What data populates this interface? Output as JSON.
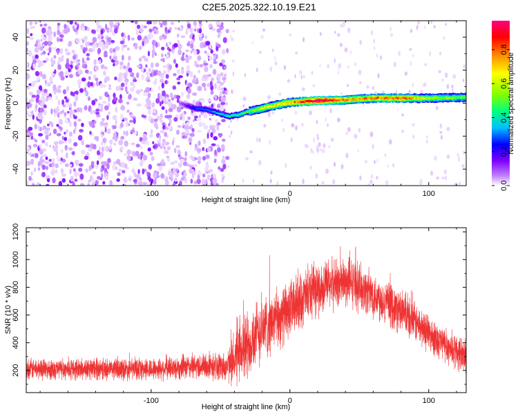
{
  "page": {
    "title": "C2E5.2025.322.10.19.E21"
  },
  "chart_data": [
    {
      "type": "heatmap",
      "name": "spectrogram",
      "xlabel": "Height of straight line (km)",
      "ylabel": "Frequency (Hz)",
      "xlim": [
        -190,
        127
      ],
      "ylim": [
        -50,
        50
      ],
      "xticks": [
        -100,
        0,
        100
      ],
      "xtick_labels": [
        "-100",
        "0",
        "100"
      ],
      "yticks": [
        -40,
        -20,
        0,
        20,
        40
      ],
      "ytick_labels": [
        "-40",
        "-20",
        "0",
        "20",
        "40"
      ],
      "colorbar": {
        "label": "Normalized spectral amplitude",
        "range": [
          0,
          0.97
        ],
        "ticks": [
          0,
          0.2,
          0.4,
          0.6,
          0.8
        ],
        "tick_labels": [
          "0.0",
          "0.2",
          "0.4",
          "0.6",
          "0.8"
        ],
        "colormap": [
          "#ffffff",
          "#c080ff",
          "#7f00ff",
          "#0000ff",
          "#00c0ff",
          "#00ff80",
          "#80ff00",
          "#ffff00",
          "#ff8000",
          "#ff0000",
          "#ff0080"
        ]
      },
      "noise_region": {
        "x": [
          -190,
          -45
        ],
        "amplitude": 0.15
      },
      "ridge": {
        "x": [
          -80,
          -70,
          -60,
          -45,
          -38,
          -30,
          -20,
          -10,
          0,
          10,
          20,
          40,
          60,
          80,
          100,
          127
        ],
        "frequency": [
          0,
          -3,
          -4,
          -8,
          -7,
          -5,
          -3,
          -1,
          0.5,
          1,
          1.5,
          2,
          3,
          3,
          3,
          3.5
        ],
        "amplitude": [
          0.12,
          0.3,
          0.35,
          0.45,
          0.5,
          0.55,
          0.65,
          0.7,
          0.75,
          0.85,
          0.95,
          0.75,
          0.78,
          0.8,
          0.6,
          0.55
        ]
      }
    },
    {
      "type": "line",
      "name": "snr",
      "xlabel": "Height of straight line (km)",
      "ylabel": "SNR (10 * v/v)",
      "xlim": [
        -190,
        127
      ],
      "ylim": [
        40,
        1230
      ],
      "xticks": [
        -100,
        0,
        100
      ],
      "xtick_labels": [
        "-100",
        "0",
        "100"
      ],
      "yticks": [
        200,
        400,
        600,
        800,
        1000,
        1200
      ],
      "ytick_labels": [
        "200",
        "400",
        "600",
        "800",
        "1000",
        "1200"
      ],
      "color": "#ee3333",
      "envelope": {
        "x": [
          -190,
          -100,
          -65,
          -45,
          -38,
          -30,
          -20,
          -10,
          0,
          15,
          30,
          45,
          60,
          80,
          100,
          115,
          127
        ],
        "mean": [
          210,
          210,
          230,
          230,
          300,
          400,
          500,
          560,
          640,
          760,
          830,
          830,
          750,
          620,
          470,
          360,
          300
        ],
        "spread": [
          90,
          95,
          110,
          130,
          260,
          300,
          280,
          260,
          250,
          230,
          220,
          210,
          200,
          180,
          160,
          150,
          150
        ]
      }
    }
  ]
}
